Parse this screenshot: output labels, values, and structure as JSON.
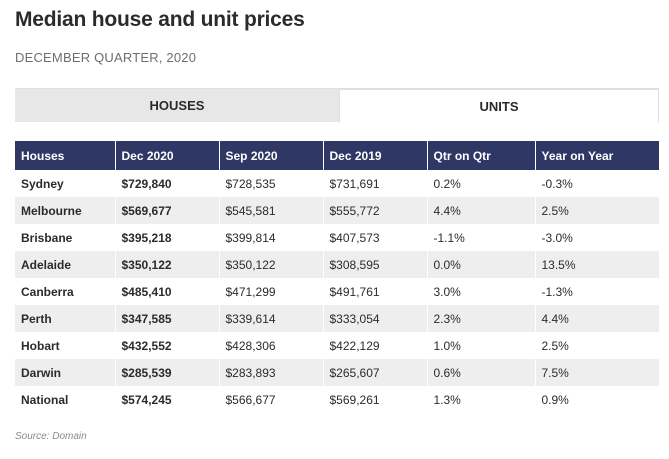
{
  "title": "Median house and unit prices",
  "subtitle": "DECEMBER QUARTER, 2020",
  "tabs": [
    {
      "label": "HOUSES",
      "active": false
    },
    {
      "label": "UNITS",
      "active": true
    }
  ],
  "colors": {
    "header_bg": "#2f3765",
    "header_text": "#ffffff",
    "stripe": "#eeeeee",
    "tab_inactive": "#e7e7e7"
  },
  "table": {
    "headers": [
      "Houses",
      "Dec 2020",
      "Sep 2020",
      "Dec 2019",
      "Qtr on Qtr",
      "Year on Year"
    ],
    "rows": [
      [
        "Sydney",
        "$729,840",
        "$728,535",
        "$731,691",
        "0.2%",
        "-0.3%"
      ],
      [
        "Melbourne",
        "$569,677",
        "$545,581",
        "$555,772",
        "4.4%",
        "2.5%"
      ],
      [
        "Brisbane",
        "$395,218",
        "$399,814",
        "$407,573",
        "-1.1%",
        "-3.0%"
      ],
      [
        "Adelaide",
        "$350,122",
        "$350,122",
        "$308,595",
        "0.0%",
        "13.5%"
      ],
      [
        "Canberra",
        "$485,410",
        "$471,299",
        "$491,761",
        "3.0%",
        "-1.3%"
      ],
      [
        "Perth",
        "$347,585",
        "$339,614",
        "$333,054",
        "2.3%",
        "4.4%"
      ],
      [
        "Hobart",
        "$432,552",
        "$428,306",
        "$422,129",
        "1.0%",
        "2.5%"
      ],
      [
        "Darwin",
        "$285,539",
        "$283,893",
        "$265,607",
        "0.6%",
        "7.5%"
      ],
      [
        "National",
        "$574,245",
        "$566,677",
        "$569,261",
        "1.3%",
        "0.9%"
      ]
    ]
  },
  "source": "Source: Domain"
}
